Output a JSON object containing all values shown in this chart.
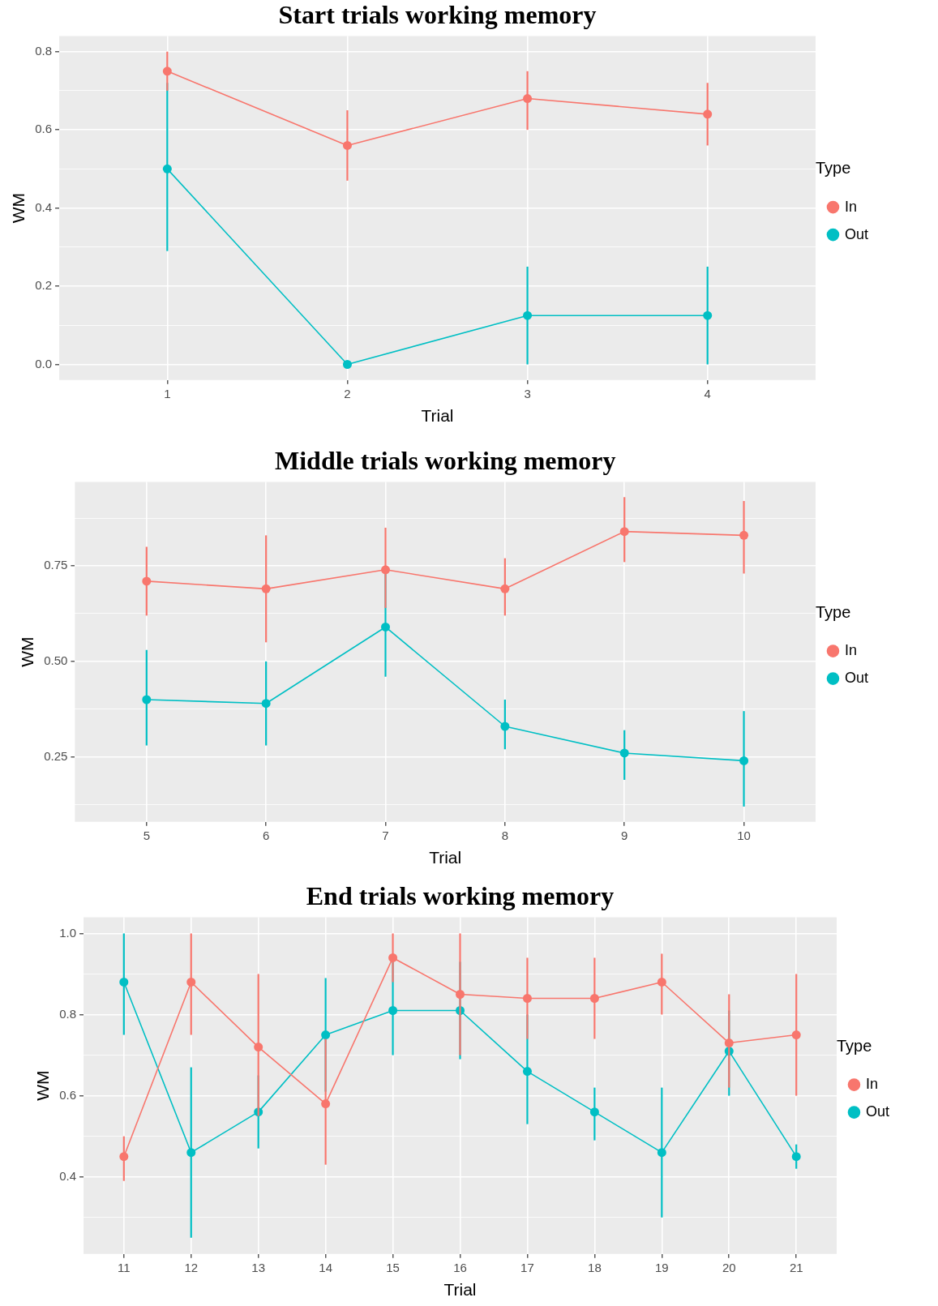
{
  "chart_data": [
    {
      "type": "line",
      "title": "Start trials working memory",
      "xlabel": "Trial",
      "ylabel": "WM",
      "legend_title": "Type",
      "legend": "right",
      "grid": true,
      "marker": "circle",
      "line_style": "solid",
      "x": [
        1,
        2,
        3,
        4
      ],
      "xlim": [
        0.4,
        4.6
      ],
      "xticks": [
        1,
        2,
        3,
        4
      ],
      "ylim": [
        -0.04,
        0.84
      ],
      "yticks": [
        {
          "value": 0,
          "label": "0.0"
        },
        {
          "value": 0.1,
          "label": null
        },
        0.2,
        {
          "value": 0.3,
          "label": null
        },
        0.4,
        {
          "value": 0.5,
          "label": null
        },
        0.6,
        {
          "value": 0.7,
          "label": null
        },
        0.8
      ],
      "series": [
        {
          "name": "In",
          "color": "#f8766d",
          "values": [
            0.75,
            0.56,
            0.68,
            0.64
          ],
          "errors": [
            [
              0.7,
              0.8
            ],
            [
              0.47,
              0.65
            ],
            [
              0.6,
              0.75
            ],
            [
              0.56,
              0.72
            ]
          ]
        },
        {
          "name": "Out",
          "color": "#00bfc4",
          "values": [
            0.5,
            0,
            0.125,
            0.125
          ],
          "errors": [
            [
              0.29,
              0.72
            ],
            null,
            [
              0,
              0.25
            ],
            [
              0,
              0.25
            ]
          ]
        }
      ]
    },
    {
      "type": "line",
      "title": "Middle trials working memory",
      "xlabel": "Trial",
      "ylabel": "WM",
      "legend_title": "Type",
      "legend": "right",
      "grid": true,
      "marker": "circle",
      "line_style": "solid",
      "x": [
        5,
        6,
        7,
        8,
        9,
        10
      ],
      "xlim": [
        4.4,
        10.6
      ],
      "xticks": [
        5,
        6,
        7,
        8,
        9,
        10
      ],
      "ylim": [
        0.08,
        0.97
      ],
      "yticks": [
        {
          "value": 0.125,
          "label": null
        },
        0.25,
        {
          "value": 0.375,
          "label": null
        },
        {
          "value": 0.5,
          "label": "0.50"
        },
        {
          "value": 0.625,
          "label": null
        },
        0.75,
        {
          "value": 0.875,
          "label": null
        }
      ],
      "series": [
        {
          "name": "In",
          "color": "#f8766d",
          "values": [
            0.71,
            0.69,
            0.74,
            0.69,
            0.84,
            0.83
          ],
          "errors": [
            [
              0.62,
              0.8
            ],
            [
              0.55,
              0.83
            ],
            [
              0.64,
              0.85
            ],
            [
              0.62,
              0.77
            ],
            [
              0.76,
              0.93
            ],
            [
              0.73,
              0.92
            ]
          ]
        },
        {
          "name": "Out",
          "color": "#00bfc4",
          "values": [
            0.4,
            0.39,
            0.59,
            0.33,
            0.26,
            0.24
          ],
          "errors": [
            [
              0.28,
              0.53
            ],
            [
              0.28,
              0.5
            ],
            [
              0.46,
              0.73
            ],
            [
              0.27,
              0.4
            ],
            [
              0.19,
              0.32
            ],
            [
              0.12,
              0.37
            ]
          ]
        }
      ]
    },
    {
      "type": "line",
      "title": "End trials working memory",
      "xlabel": "Trial",
      "ylabel": "WM",
      "legend_title": "Type",
      "legend": "right",
      "grid": true,
      "marker": "circle",
      "line_style": "solid",
      "x": [
        11,
        12,
        13,
        14,
        15,
        16,
        17,
        18,
        19,
        20,
        21
      ],
      "xlim": [
        10.4,
        21.6
      ],
      "xticks": [
        11,
        12,
        13,
        14,
        15,
        16,
        17,
        18,
        19,
        20,
        21
      ],
      "ylim": [
        0.21,
        1.04
      ],
      "yticks": [
        {
          "value": 0.3,
          "label": null
        },
        0.4,
        {
          "value": 0.5,
          "label": null
        },
        0.6,
        {
          "value": 0.7,
          "label": null
        },
        0.8,
        {
          "value": 0.9,
          "label": null
        },
        {
          "value": 1,
          "label": "1.0"
        }
      ],
      "series": [
        {
          "name": "In",
          "color": "#f8766d",
          "values": [
            0.45,
            0.88,
            0.72,
            0.58,
            0.94,
            0.85,
            0.84,
            0.84,
            0.88,
            0.73,
            0.75
          ],
          "errors": [
            [
              0.39,
              0.5
            ],
            [
              0.75,
              1.0
            ],
            [
              0.55,
              0.9
            ],
            [
              0.43,
              0.74
            ],
            [
              0.88,
              1.0
            ],
            [
              0.7,
              1.0
            ],
            [
              0.74,
              0.94
            ],
            [
              0.74,
              0.94
            ],
            [
              0.8,
              0.95
            ],
            [
              0.62,
              0.85
            ],
            [
              0.6,
              0.9
            ]
          ]
        },
        {
          "name": "Out",
          "color": "#00bfc4",
          "values": [
            0.88,
            0.46,
            0.56,
            0.75,
            0.81,
            0.81,
            0.66,
            0.56,
            0.46,
            0.71,
            0.45
          ],
          "errors": [
            [
              0.75,
              1.0
            ],
            [
              0.25,
              0.67
            ],
            [
              0.47,
              0.65
            ],
            [
              0.61,
              0.89
            ],
            [
              0.7,
              0.93
            ],
            [
              0.69,
              0.93
            ],
            [
              0.53,
              0.8
            ],
            [
              0.49,
              0.62
            ],
            [
              0.3,
              0.62
            ],
            [
              0.6,
              0.81
            ],
            [
              0.42,
              0.48
            ]
          ]
        }
      ]
    }
  ]
}
